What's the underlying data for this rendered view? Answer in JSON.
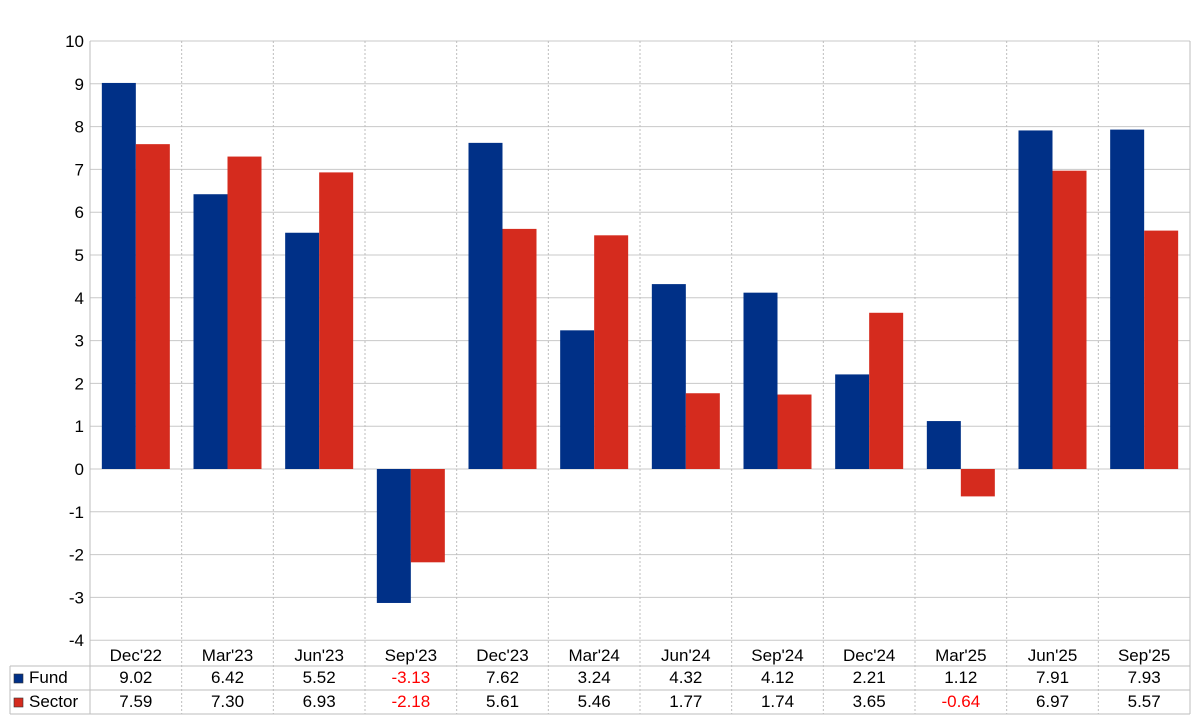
{
  "chart_data": {
    "type": "bar",
    "categories": [
      "Dec'22",
      "Mar'23",
      "Jun'23",
      "Sep'23",
      "Dec'23",
      "Mar'24",
      "Jun'24",
      "Sep'24",
      "Dec'24",
      "Mar'25",
      "Jun'25",
      "Sep'25"
    ],
    "series": [
      {
        "name": "Fund",
        "color": "#003087",
        "values": [
          9.02,
          6.42,
          5.52,
          -3.13,
          7.62,
          3.24,
          4.32,
          4.12,
          2.21,
          1.12,
          7.91,
          7.93
        ],
        "labels": [
          "9.02",
          "6.42",
          "5.52",
          "-3.13",
          "7.62",
          "3.24",
          "4.32",
          "4.12",
          "2.21",
          "1.12",
          "7.91",
          "7.93"
        ]
      },
      {
        "name": "Sector",
        "color": "#d52b1e",
        "values": [
          7.59,
          7.3,
          6.93,
          -2.18,
          5.61,
          5.46,
          1.77,
          1.74,
          3.65,
          -0.64,
          6.97,
          5.57
        ],
        "labels": [
          "7.59",
          "7.30",
          "6.93",
          "-2.18",
          "5.61",
          "5.46",
          "1.77",
          "1.74",
          "3.65",
          "-0.64",
          "6.97",
          "5.57"
        ]
      }
    ],
    "ylim": [
      -4,
      10
    ],
    "yticks": [
      "10",
      "9",
      "8",
      "7",
      "6",
      "5",
      "4",
      "3",
      "2",
      "1",
      "0",
      "-1",
      "-2",
      "-3",
      "-4"
    ],
    "grid": true,
    "legend": "data-table-bottom",
    "negative_label_color": "#ff0000"
  }
}
